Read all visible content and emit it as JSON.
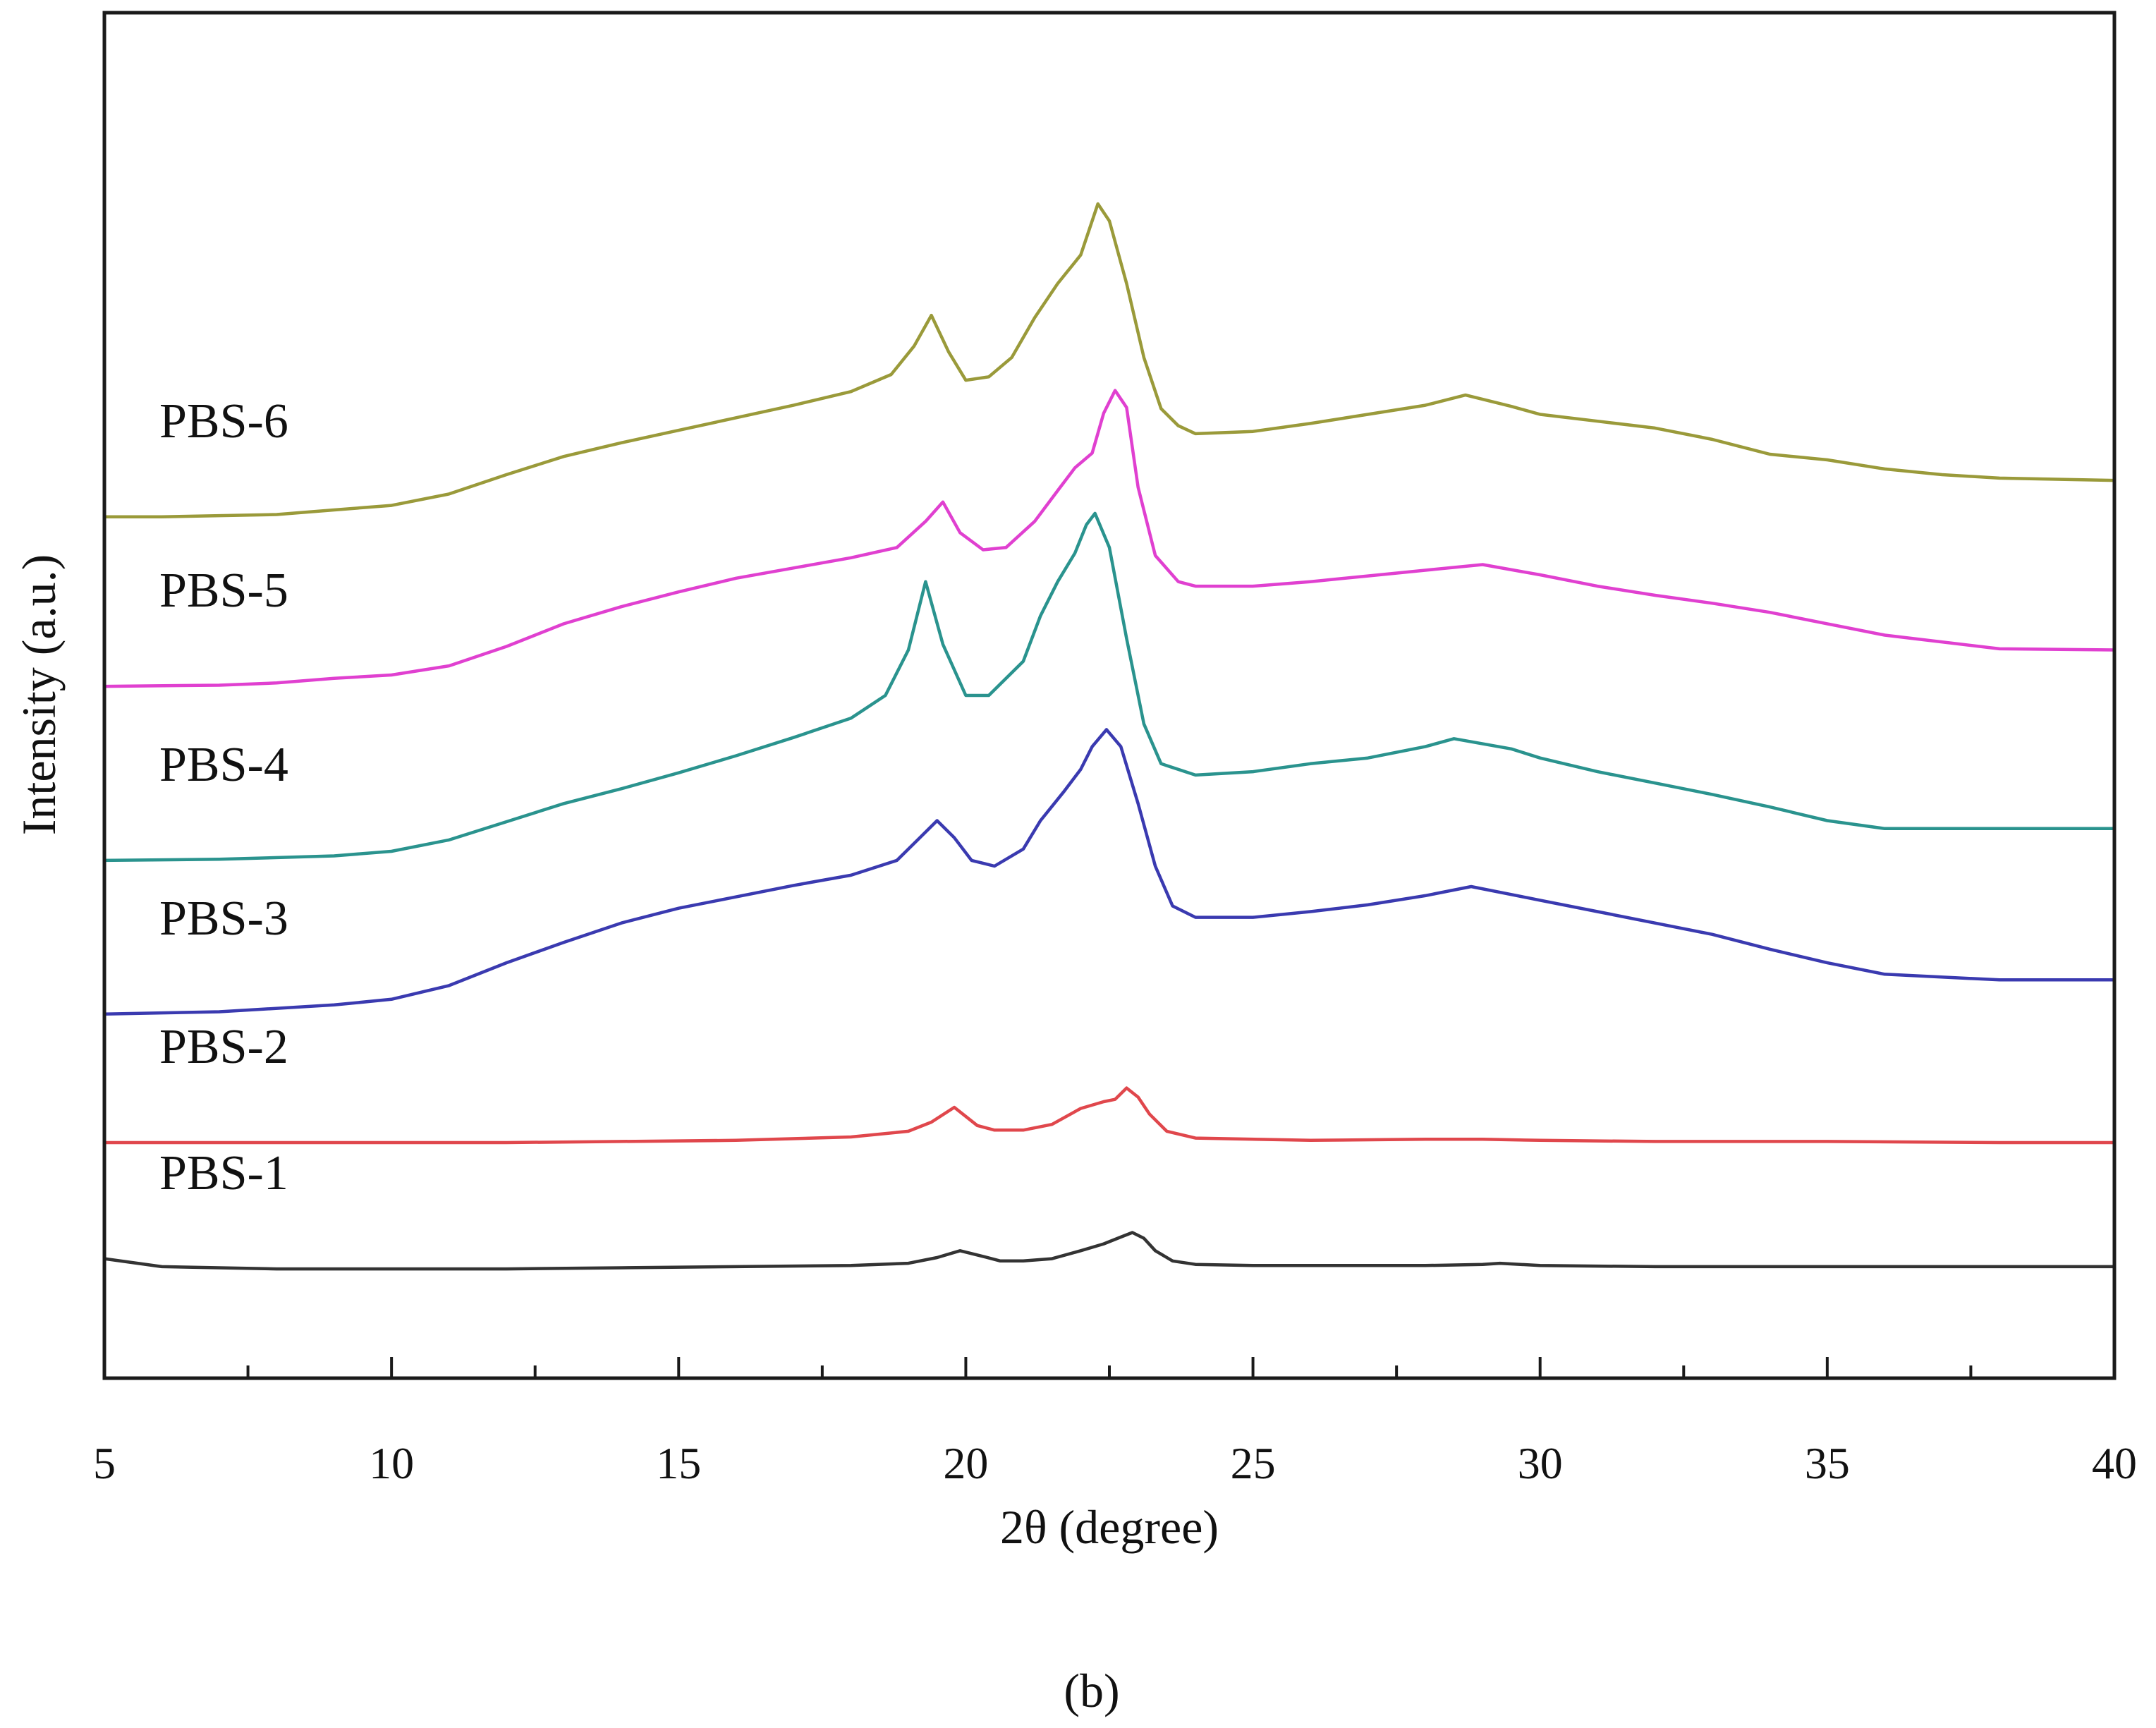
{
  "chart_data": {
    "type": "line",
    "title": "",
    "xlabel": "2θ  (degree)",
    "ylabel": "Intensity (a.u.)",
    "xlim": [
      5,
      40
    ],
    "ylim": [
      0,
      12
    ],
    "xticks": [
      5,
      10,
      15,
      20,
      25,
      30,
      35,
      40
    ],
    "xtick_labels": [
      "5",
      "10",
      "15",
      "20",
      "25",
      "30",
      "35",
      "40"
    ],
    "yticks": [],
    "grid": false,
    "legend": "inline labels at left of each curve",
    "panel_label": "(b)",
    "series": [
      {
        "name": "PBS-1",
        "color": "#333333",
        "offset": 0.96,
        "x": [
          5,
          6,
          8,
          10,
          12,
          14,
          16,
          18,
          19,
          19.5,
          19.9,
          20.3,
          20.6,
          21,
          21.5,
          22,
          22.4,
          22.7,
          22.9,
          23.1,
          23.3,
          23.6,
          24,
          25,
          26,
          27,
          28,
          29,
          29.3,
          30,
          32,
          34,
          36,
          38,
          40
        ],
        "values": [
          0.09,
          0.02,
          0.0,
          0.0,
          0.0,
          0.01,
          0.02,
          0.03,
          0.05,
          0.1,
          0.16,
          0.11,
          0.07,
          0.07,
          0.09,
          0.16,
          0.22,
          0.28,
          0.32,
          0.27,
          0.16,
          0.07,
          0.04,
          0.03,
          0.03,
          0.03,
          0.03,
          0.04,
          0.05,
          0.03,
          0.02,
          0.02,
          0.02,
          0.02,
          0.02
        ]
      },
      {
        "name": "PBS-2",
        "color": "#e0474c",
        "offset": 2.07,
        "x": [
          5,
          8,
          10,
          12,
          14,
          16,
          18,
          19,
          19.4,
          19.8,
          20.2,
          20.5,
          21,
          21.5,
          22,
          22.4,
          22.6,
          22.8,
          23,
          23.2,
          23.5,
          24,
          26,
          28,
          29,
          30,
          32,
          35,
          38,
          40
        ],
        "values": [
          0.0,
          0.0,
          0.0,
          0.0,
          0.01,
          0.02,
          0.05,
          0.1,
          0.18,
          0.31,
          0.15,
          0.11,
          0.11,
          0.16,
          0.3,
          0.36,
          0.38,
          0.48,
          0.4,
          0.25,
          0.1,
          0.04,
          0.02,
          0.03,
          0.03,
          0.02,
          0.01,
          0.01,
          0.0,
          0.0
        ]
      },
      {
        "name": "PBS-3",
        "color": "#3a3ab0",
        "offset": 3.2,
        "x": [
          5,
          7,
          9,
          10,
          11,
          12,
          13,
          14,
          15,
          16,
          17,
          18,
          18.8,
          19.2,
          19.5,
          19.8,
          20.1,
          20.5,
          21,
          21.3,
          21.7,
          22,
          22.2,
          22.45,
          22.7,
          23,
          23.3,
          23.6,
          24,
          25,
          26,
          27,
          28,
          28.8,
          29.5,
          30,
          31,
          32,
          33,
          34,
          35,
          36,
          38,
          40
        ],
        "values": [
          0.0,
          0.02,
          0.08,
          0.13,
          0.25,
          0.45,
          0.63,
          0.8,
          0.93,
          1.03,
          1.13,
          1.22,
          1.35,
          1.55,
          1.7,
          1.55,
          1.35,
          1.3,
          1.45,
          1.7,
          1.95,
          2.15,
          2.35,
          2.5,
          2.35,
          1.85,
          1.3,
          0.95,
          0.85,
          0.85,
          0.9,
          0.96,
          1.04,
          1.12,
          1.05,
          1.0,
          0.9,
          0.8,
          0.7,
          0.57,
          0.45,
          0.35,
          0.3,
          0.3
        ]
      },
      {
        "name": "PBS-4",
        "color": "#2a938e",
        "offset": 4.55,
        "x": [
          5,
          7,
          9,
          10,
          11,
          12,
          13,
          14,
          15,
          16,
          17,
          18,
          18.6,
          19.0,
          19.3,
          19.6,
          20.0,
          20.4,
          21,
          21.3,
          21.6,
          21.9,
          22.1,
          22.25,
          22.5,
          22.8,
          23.1,
          23.4,
          24,
          25,
          26,
          27,
          28,
          28.5,
          29.5,
          30,
          31,
          32,
          33,
          34,
          35,
          36,
          38,
          40
        ],
        "values": [
          0.0,
          0.01,
          0.04,
          0.08,
          0.18,
          0.34,
          0.5,
          0.63,
          0.77,
          0.92,
          1.08,
          1.25,
          1.45,
          1.85,
          2.45,
          1.9,
          1.45,
          1.45,
          1.75,
          2.15,
          2.45,
          2.7,
          2.95,
          3.05,
          2.75,
          1.95,
          1.2,
          0.85,
          0.75,
          0.78,
          0.85,
          0.9,
          1.0,
          1.07,
          0.98,
          0.9,
          0.78,
          0.68,
          0.58,
          0.47,
          0.35,
          0.28,
          0.28,
          0.28
        ]
      },
      {
        "name": "PBS-5",
        "color": "#e040d0",
        "offset": 6.08,
        "x": [
          5,
          7,
          8,
          9,
          10,
          11,
          12,
          13,
          14,
          15,
          16,
          17,
          18,
          18.8,
          19.3,
          19.6,
          19.9,
          20.3,
          20.7,
          21.2,
          21.6,
          21.9,
          22.2,
          22.4,
          22.6,
          22.8,
          23.0,
          23.3,
          23.7,
          24,
          25,
          26,
          27,
          28,
          29,
          30,
          31,
          32,
          33,
          34,
          35,
          36,
          38,
          40
        ],
        "values": [
          0.0,
          0.01,
          0.03,
          0.07,
          0.1,
          0.18,
          0.35,
          0.55,
          0.7,
          0.83,
          0.95,
          1.04,
          1.13,
          1.22,
          1.45,
          1.62,
          1.35,
          1.2,
          1.22,
          1.45,
          1.72,
          1.92,
          2.05,
          2.4,
          2.6,
          2.45,
          1.75,
          1.15,
          0.92,
          0.88,
          0.88,
          0.92,
          0.97,
          1.02,
          1.07,
          0.98,
          0.88,
          0.8,
          0.73,
          0.65,
          0.55,
          0.45,
          0.33,
          0.32
        ]
      },
      {
        "name": "PBS-6",
        "color": "#9a9a3a",
        "offset": 7.57,
        "x": [
          5,
          6,
          7,
          8,
          9,
          10,
          11,
          12,
          13,
          14,
          15,
          16,
          17,
          18,
          18.7,
          19.1,
          19.4,
          19.7,
          20.0,
          20.4,
          20.8,
          21.2,
          21.6,
          22.0,
          22.3,
          22.5,
          22.8,
          23.1,
          23.4,
          23.7,
          24,
          25,
          26,
          27,
          28,
          28.7,
          29.5,
          30,
          31,
          32,
          33,
          34,
          35,
          36,
          37,
          38,
          40
        ],
        "values": [
          0.0,
          0.0,
          0.01,
          0.02,
          0.06,
          0.1,
          0.2,
          0.37,
          0.53,
          0.65,
          0.76,
          0.87,
          0.98,
          1.1,
          1.25,
          1.5,
          1.77,
          1.45,
          1.2,
          1.23,
          1.4,
          1.75,
          2.05,
          2.3,
          2.75,
          2.6,
          2.05,
          1.4,
          0.95,
          0.8,
          0.73,
          0.75,
          0.82,
          0.9,
          0.98,
          1.07,
          0.97,
          0.9,
          0.84,
          0.78,
          0.68,
          0.55,
          0.5,
          0.42,
          0.37,
          0.34,
          0.32
        ]
      }
    ]
  }
}
